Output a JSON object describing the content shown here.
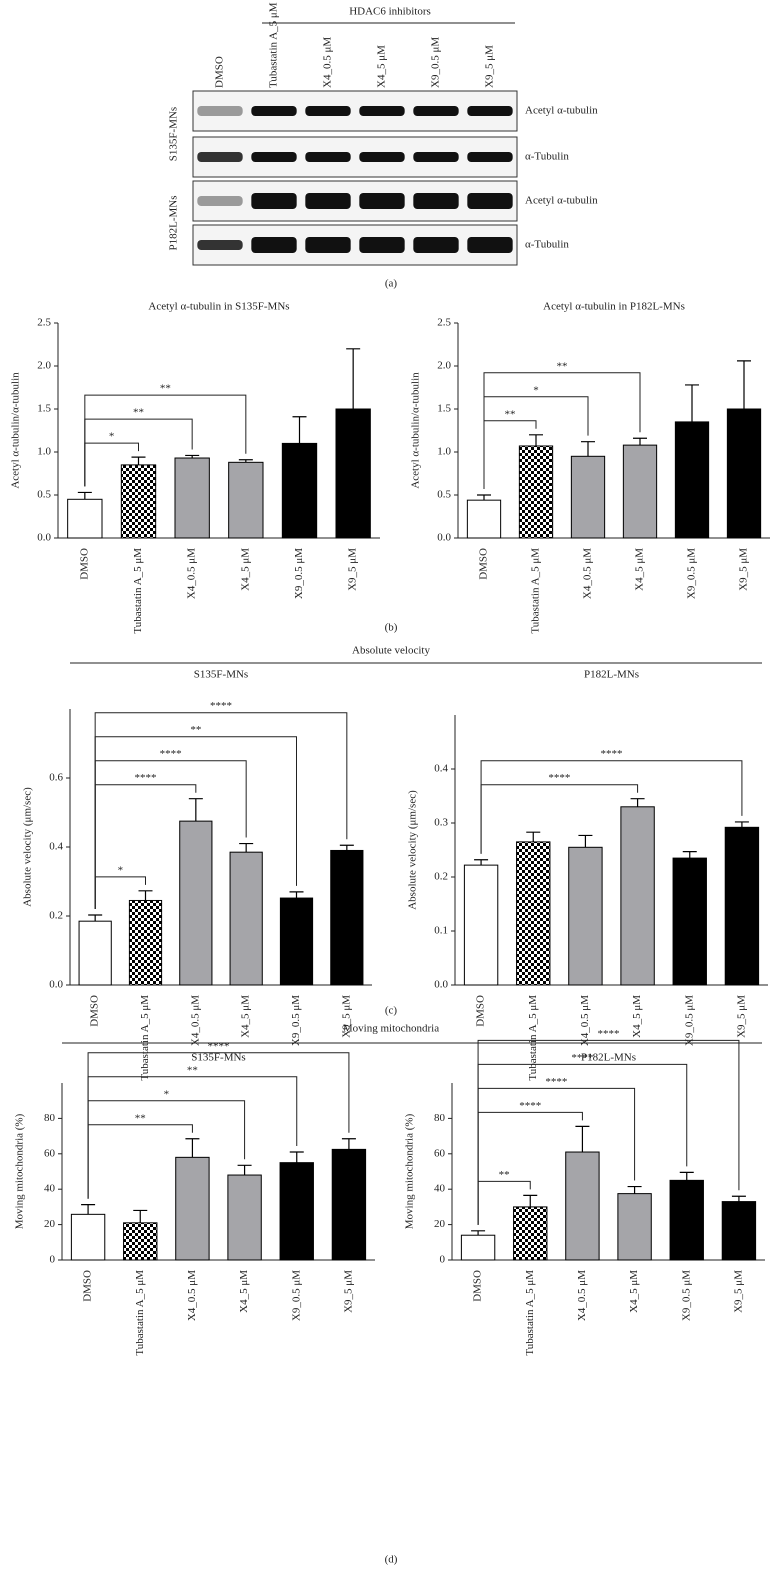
{
  "blot": {
    "title": "HDAC6 inhibitors",
    "lanes": [
      "DMSO",
      "Tubastatin A_5 μM",
      "X4_0.5 μM",
      "X4_5 μM",
      "X9_0.5 μM",
      "X9_5 μM"
    ],
    "groups": [
      {
        "label": "S135F-MNs",
        "rows": [
          "Acetyl α-tubulin",
          "α-Tubulin"
        ]
      },
      {
        "label": "P182L-MNs",
        "rows": [
          "Acetyl α-tubulin",
          "α-Tubulin"
        ]
      }
    ],
    "caption": "(a)"
  },
  "captions": {
    "b": "(b)",
    "c": "(c)",
    "d": "(d)"
  },
  "group_titles": {
    "c": "Absolute velocity",
    "d": "Moving mitochondria"
  },
  "chart_data": [
    {
      "type": "bar",
      "title": "Acetyl α-tubulin in S135F-MNs",
      "y_label": "Acetyl α-tubulin/α-tubulin",
      "categories": [
        "DMSO",
        "Tubastatin A_5 μM",
        "X4_0.5 μM",
        "X4_5 μM",
        "X9_0.5 μM",
        "X9_5 μM"
      ],
      "values": [
        0.45,
        0.85,
        0.93,
        0.88,
        1.1,
        1.5
      ],
      "errors": [
        0.08,
        0.09,
        0.03,
        0.03,
        0.31,
        0.7
      ],
      "significance": [
        null,
        "*",
        "**",
        "**",
        null,
        null
      ],
      "bar_styles": [
        "open",
        "checker",
        "gray",
        "gray",
        "black",
        "black"
      ],
      "ylim": [
        0,
        2.5
      ],
      "yticks": [
        {
          "value": 0,
          "label": "0.0"
        },
        0.5,
        {
          "value": 1,
          "label": "1.0"
        },
        1.5,
        {
          "value": 2,
          "label": "2.0"
        },
        2.5
      ]
    },
    {
      "type": "bar",
      "title": "Acetyl α-tubulin in P182L-MNs",
      "y_label": "Acetyl α-tubulin/α-tubulin",
      "categories": [
        "DMSO",
        "Tubastatin A_5 μM",
        "X4_0.5 μM",
        "X4_5 μM",
        "X9_0.5 μM",
        "X9_5 μM"
      ],
      "values": [
        0.44,
        1.07,
        0.95,
        1.08,
        1.35,
        1.5
      ],
      "errors": [
        0.06,
        0.13,
        0.17,
        0.08,
        0.43,
        0.56
      ],
      "significance": [
        null,
        "**",
        "*",
        "**",
        null,
        null
      ],
      "bar_styles": [
        "open",
        "checker",
        "gray",
        "gray",
        "black",
        "black"
      ],
      "ylim": [
        0,
        2.5
      ],
      "yticks": [
        {
          "value": 0,
          "label": "0.0"
        },
        0.5,
        {
          "value": 1,
          "label": "1.0"
        },
        1.5,
        {
          "value": 2,
          "label": "2.0"
        },
        2.5
      ]
    },
    {
      "type": "bar",
      "title": "S135F-MNs",
      "y_label": "Absolute velocity (μm/sec)",
      "categories": [
        "DMSO",
        "Tubastatin A_5 μM",
        "X4_0.5 μM",
        "X4_5 μM",
        "X9_0.5 μM",
        "X9_5 μM"
      ],
      "values": [
        0.185,
        0.245,
        0.475,
        0.385,
        0.252,
        0.39
      ],
      "errors": [
        0.018,
        0.028,
        0.065,
        0.025,
        0.018,
        0.015
      ],
      "significance": [
        null,
        "*",
        "****",
        "****",
        "**",
        "****"
      ],
      "bar_styles": [
        "open",
        "checker",
        "gray",
        "gray",
        "black",
        "black"
      ],
      "ylim": [
        0,
        0.8
      ],
      "yticks": [
        {
          "value": 0,
          "label": "0.0"
        },
        0.2,
        0.4,
        0.6
      ]
    },
    {
      "type": "bar",
      "title": "P182L-MNs",
      "y_label": "Absolute velocity (μm/sec)",
      "categories": [
        "DMSO",
        "Tubastatin A_5 μM",
        "X4_0.5 μM",
        "X4_5 μM",
        "X9_0.5 μM",
        "X9_5 μM"
      ],
      "values": [
        0.222,
        0.265,
        0.255,
        0.33,
        0.235,
        0.292
      ],
      "errors": [
        0.01,
        0.018,
        0.022,
        0.015,
        0.012,
        0.01
      ],
      "significance": [
        null,
        null,
        null,
        "****",
        null,
        "****"
      ],
      "bar_styles": [
        "open",
        "checker",
        "gray",
        "gray",
        "black",
        "black"
      ],
      "ylim": [
        0,
        0.5
      ],
      "yticks": [
        {
          "value": 0,
          "label": "0.0"
        },
        0.1,
        0.2,
        0.3,
        0.4
      ]
    },
    {
      "type": "bar",
      "title": "S135F-MNs",
      "y_label": "Moving mitochondria (%)",
      "categories": [
        "DMSO",
        "Tubastatin A_5 μM",
        "X4_0.5 μM",
        "X4_5 μM",
        "X9_0.5 μM",
        "X9_5 μM"
      ],
      "values": [
        25.8,
        21,
        58,
        48,
        55,
        62.5
      ],
      "errors": [
        5.5,
        7,
        10.5,
        5.5,
        6,
        6
      ],
      "significance": [
        null,
        null,
        "**",
        "*",
        "**",
        "****"
      ],
      "bar_styles": [
        "open",
        "checker",
        "gray",
        "gray",
        "black",
        "black"
      ],
      "ylim": [
        0,
        100
      ],
      "yticks": [
        0,
        20,
        40,
        60,
        80
      ]
    },
    {
      "type": "bar",
      "title": "P182L-MNs",
      "y_label": "Moving mitochondria (%)",
      "categories": [
        "DMSO",
        "Tubastatin A_5 μM",
        "X4_0.5 μM",
        "X4_5 μM",
        "X9_0.5 μM",
        "X9_5 μM"
      ],
      "values": [
        14,
        30,
        61,
        37.5,
        45,
        33
      ],
      "errors": [
        2.5,
        6.5,
        14.5,
        4,
        4.5,
        3
      ],
      "significance": [
        null,
        "**",
        "****",
        "****",
        "****",
        "****"
      ],
      "bar_styles": [
        "open",
        "checker",
        "gray",
        "gray",
        "black",
        "black"
      ],
      "ylim": [
        0,
        100
      ],
      "yticks": [
        0,
        20,
        40,
        60,
        80
      ]
    }
  ]
}
